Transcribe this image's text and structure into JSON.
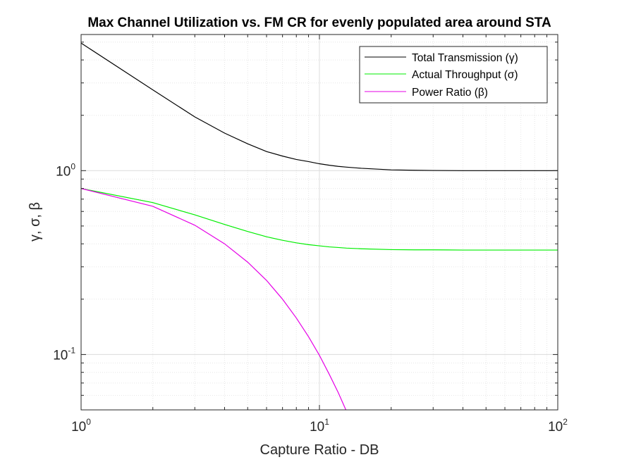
{
  "chart_data": {
    "type": "line",
    "title": "Max Channel Utilization vs. FM CR for evenly populated area around STA",
    "xlabel": "Capture Ratio - DB",
    "ylabel": "γ, σ, β",
    "x_scale": "log",
    "y_scale": "log",
    "xlim": [
      1,
      100
    ],
    "ylim": [
      0.05,
      5.5
    ],
    "grid": true,
    "legend_position": "top-right",
    "x_ticks": [
      {
        "value": 1,
        "base": "10",
        "exp": "0"
      },
      {
        "value": 10,
        "base": "10",
        "exp": "1"
      },
      {
        "value": 100,
        "base": "10",
        "exp": "2"
      }
    ],
    "y_ticks": [
      {
        "value": 0.1,
        "base": "10",
        "exp": "-1"
      },
      {
        "value": 1,
        "base": "10",
        "exp": "0"
      }
    ],
    "x": [
      1,
      2,
      3,
      4,
      5,
      6,
      7,
      8,
      9,
      10,
      11,
      12,
      13,
      15,
      20,
      25,
      30,
      40,
      50,
      70,
      100
    ],
    "series": [
      {
        "name": "Total Transmission (γ)",
        "color": "#000000",
        "values": [
          4.94,
          2.75,
          1.96,
          1.6,
          1.4,
          1.27,
          1.2,
          1.15,
          1.12,
          1.09,
          1.07,
          1.055,
          1.045,
          1.03,
          1.01,
          1.005,
          1.002,
          1.0,
          1.0,
          1.0,
          1.0
        ]
      },
      {
        "name": "Actual Throughput (σ)",
        "color": "#00ee00",
        "values": [
          0.8,
          0.67,
          0.575,
          0.51,
          0.467,
          0.437,
          0.418,
          0.405,
          0.396,
          0.39,
          0.385,
          0.382,
          0.379,
          0.376,
          0.372,
          0.371,
          0.371,
          0.37,
          0.37,
          0.37,
          0.37
        ]
      },
      {
        "name": "Power Ratio (β)",
        "color": "#e600e6",
        "values": [
          0.8,
          0.64,
          0.505,
          0.4,
          0.318,
          0.253,
          0.2,
          0.158,
          0.125,
          0.099,
          0.078,
          0.062,
          0.049,
          null,
          null,
          null,
          null,
          null,
          null,
          null,
          null
        ]
      }
    ]
  }
}
